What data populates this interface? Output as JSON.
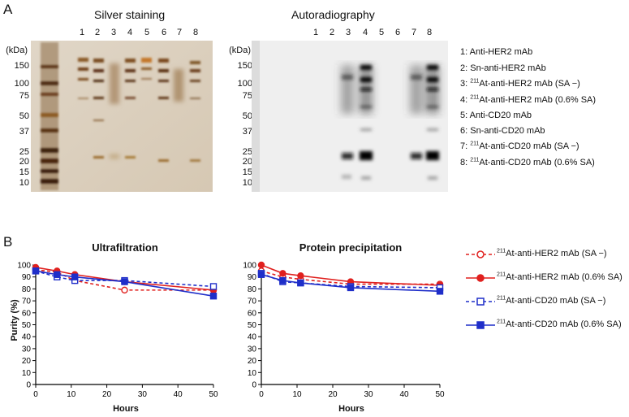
{
  "panels": {
    "a_label": "A",
    "b_label": "B"
  },
  "gels": {
    "silver": {
      "title": "Silver staining",
      "lanes": [
        "1",
        "2",
        "3",
        "4",
        "5",
        "6",
        "7",
        "8"
      ]
    },
    "auto": {
      "title": "Autoradiography",
      "lanes": [
        "1",
        "2",
        "3",
        "4",
        "5",
        "6",
        "7",
        "8"
      ]
    },
    "kda_unit": "(kDa)",
    "markers": [
      "150",
      "100",
      "75",
      "50",
      "37",
      "25",
      "20",
      "15",
      "10"
    ]
  },
  "legend_a": [
    {
      "prefix": "1: Anti-HER2 mAb"
    },
    {
      "prefix": "2: Sn-anti-HER2 mAb"
    },
    {
      "prefix": "3: ",
      "sup": "211",
      "suffix": "At-anti-HER2 mAb (SA −)"
    },
    {
      "prefix": "4: ",
      "sup": "211",
      "suffix": "At-anti-HER2 mAb (0.6% SA)"
    },
    {
      "prefix": "5: Anti-CD20 mAb"
    },
    {
      "prefix": "6: Sn-anti-CD20 mAb"
    },
    {
      "prefix": "7: ",
      "sup": "211",
      "suffix": "At-anti-CD20 mAb (SA −)"
    },
    {
      "prefix": "8: ",
      "sup": "211",
      "suffix": "At-anti-CD20 mAb (0.6% SA)"
    }
  ],
  "legend_b": [
    {
      "sup": "211",
      "text": "At-anti-HER2 mAb (SA −)",
      "color": "#e0201e",
      "marker": "circle-open",
      "dash": true
    },
    {
      "sup": "211",
      "text": "At-anti-HER2 mAb (0.6% SA)",
      "color": "#e0201e",
      "marker": "circle-filled",
      "dash": false
    },
    {
      "sup": "211",
      "text": "At-anti-CD20 mAb (SA −)",
      "color": "#1f2ec9",
      "marker": "square-open",
      "dash": true
    },
    {
      "sup": "211",
      "text": "At-anti-CD20 mAb (0.6% SA)",
      "color": "#1f2ec9",
      "marker": "square-filled",
      "dash": false
    }
  ],
  "chart_data": [
    {
      "type": "line",
      "title": "Ultrafiltration",
      "xlabel": "Hours",
      "ylabel": "Purity (%)",
      "xlim": [
        0,
        50
      ],
      "ylim": [
        0,
        100
      ],
      "xticks": [
        "0",
        "10",
        "20",
        "30",
        "40",
        "50"
      ],
      "yticks": [
        "0",
        "10",
        "20",
        "30",
        "40",
        "50",
        "60",
        "70",
        "80",
        "90",
        "100"
      ],
      "series": [
        {
          "x": [
            0,
            6,
            11,
            25,
            50
          ],
          "values": [
            96,
            94,
            87,
            79,
            79
          ]
        },
        {
          "x": [
            0,
            6,
            11,
            25,
            50
          ],
          "values": [
            98,
            95,
            92,
            86,
            79
          ]
        },
        {
          "x": [
            0,
            6,
            11,
            25,
            50
          ],
          "values": [
            95,
            90,
            87,
            87,
            82
          ]
        },
        {
          "x": [
            0,
            6,
            11,
            25,
            50
          ],
          "values": [
            95,
            92,
            90,
            86,
            74
          ]
        }
      ]
    },
    {
      "type": "line",
      "title": "Protein precipitation",
      "xlabel": "Hours",
      "ylabel": "",
      "xlim": [
        0,
        50
      ],
      "ylim": [
        0,
        100
      ],
      "xticks": [
        "0",
        "10",
        "20",
        "30",
        "40",
        "50"
      ],
      "yticks": [
        "0",
        "10",
        "20",
        "30",
        "40",
        "50",
        "60",
        "70",
        "80",
        "90",
        "100"
      ],
      "series": [
        {
          "x": [
            0,
            6,
            11,
            25,
            50
          ],
          "values": [
            95,
            90,
            88,
            84,
            84
          ]
        },
        {
          "x": [
            0,
            6,
            11,
            25,
            50
          ],
          "values": [
            100,
            93,
            91,
            86,
            83
          ]
        },
        {
          "x": [
            0,
            6,
            11,
            25,
            50
          ],
          "values": [
            93,
            86,
            85,
            82,
            81
          ]
        },
        {
          "x": [
            0,
            6,
            11,
            25,
            50
          ],
          "values": [
            92,
            87,
            85,
            81,
            78
          ]
        }
      ]
    }
  ]
}
